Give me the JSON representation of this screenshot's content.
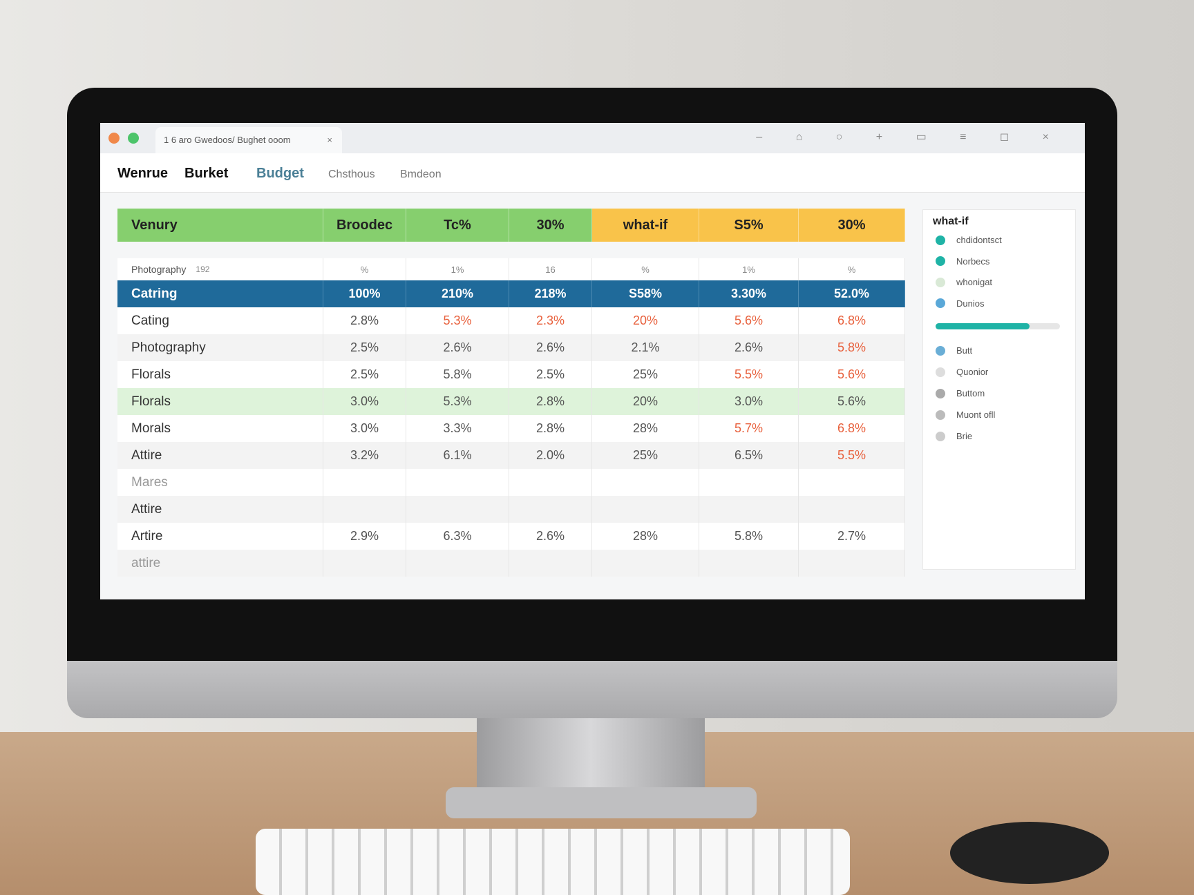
{
  "window": {
    "tab_title": "1 6 aro Gwedoos/ Bughet ooom"
  },
  "nav": {
    "items": [
      "Wenrue",
      "Burket",
      "Budget",
      "Chsthous",
      "Bmdeon"
    ]
  },
  "table": {
    "header": {
      "cells": [
        "Venury",
        "Broodec",
        "Tc%",
        "30%",
        "what-if",
        "S5%",
        "30%"
      ],
      "colors": [
        "#86cf6e",
        "#86cf6e",
        "#86cf6e",
        "#86cf6e",
        "#f9c34a",
        "#f9c34a",
        "#f9c34a"
      ]
    },
    "subheader": {
      "label": "Photography",
      "note": "192",
      "cells": [
        "%",
        "1%",
        "16",
        "%",
        "1%",
        "%"
      ]
    },
    "rows": [
      {
        "cells": [
          "Catring",
          "100%",
          "210%",
          "218%",
          "S58%",
          "3.30%",
          "52.0%"
        ],
        "fill": "#1f6a9a"
      },
      {
        "cells": [
          "Cating",
          "2.8%",
          "5.3%",
          "2.3%",
          "20%",
          "5.6%",
          "6.8%"
        ],
        "colors": [
          "#333333",
          "#555555",
          "#e8603c",
          "#e8603c",
          "#e8603c",
          "#e8603c",
          "#e8603c"
        ]
      },
      {
        "cells": [
          "Photography",
          "2.5%",
          "2.6%",
          "2.6%",
          "2.1%",
          "2.6%",
          "5.8%"
        ],
        "colors": [
          "#333333",
          "#555555",
          "#555555",
          "#555555",
          "#555555",
          "#555555",
          "#e8603c"
        ]
      },
      {
        "cells": [
          "Florals",
          "2.5%",
          "5.8%",
          "2.5%",
          "25%",
          "5.5%",
          "5.6%"
        ],
        "colors": [
          "#333333",
          "#555555",
          "#555555",
          "#555555",
          "#555555",
          "#e8603c",
          "#e8603c"
        ]
      },
      {
        "cells": [
          "Florals",
          "3.0%",
          "5.3%",
          "2.8%",
          "20%",
          "3.0%",
          "5.6%"
        ],
        "fill": "#def3da"
      },
      {
        "cells": [
          "Morals",
          "3.0%",
          "3.3%",
          "2.8%",
          "28%",
          "5.7%",
          "6.8%"
        ],
        "colors": [
          "#333333",
          "#555555",
          "#555555",
          "#555555",
          "#555555",
          "#e8603c",
          "#e8603c"
        ]
      },
      {
        "cells": [
          "Attire",
          "3.2%",
          "6.1%",
          "2.0%",
          "25%",
          "6.5%",
          "5.5%"
        ],
        "colors": [
          "#333333",
          "#555555",
          "#555555",
          "#555555",
          "#555555",
          "#555555",
          "#e8603c"
        ]
      },
      {
        "cells": [
          "Mares"
        ],
        "colors": [
          "#999999"
        ]
      },
      {
        "cells": [
          "Attire"
        ]
      },
      {
        "cells": [
          "Artire",
          "2.9%",
          "6.3%",
          "2.6%",
          "28%",
          "5.8%",
          "2.7%"
        ]
      },
      {
        "cells": [
          "attire"
        ],
        "colors": [
          "#999999"
        ]
      }
    ]
  },
  "sidebar": {
    "title": "what-if",
    "items": [
      "chdidontsct",
      "Norbecs",
      "whonigat",
      "Dunios",
      "Butt",
      "Quonior",
      "Buttom",
      "Muont ofll",
      "Brie"
    ]
  }
}
